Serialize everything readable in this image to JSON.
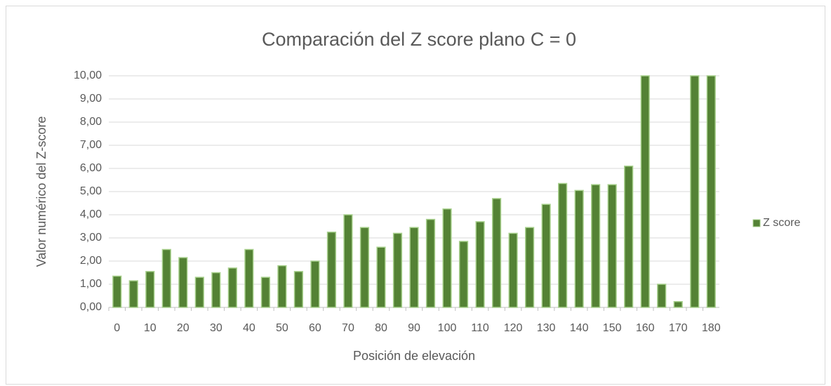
{
  "chart_data": {
    "type": "bar",
    "title": "Comparación del Z score plano C = 0",
    "xlabel": "Posición de elevación",
    "ylabel": "Valor numérico del  Z-score",
    "categories": [
      "0",
      null,
      "10",
      null,
      "20",
      null,
      "30",
      null,
      "40",
      null,
      "50",
      null,
      "60",
      null,
      "70",
      null,
      "80",
      null,
      "90",
      null,
      "100",
      null,
      "110",
      null,
      "120",
      null,
      "130",
      null,
      "140",
      null,
      "150",
      null,
      "160",
      null,
      "170",
      null,
      "180"
    ],
    "series": [
      {
        "name": "Z score",
        "color": "#548235",
        "values": [
          1.35,
          1.15,
          1.55,
          2.5,
          2.15,
          1.3,
          1.5,
          1.7,
          2.5,
          1.3,
          1.8,
          1.55,
          2.0,
          3.25,
          4.0,
          3.45,
          2.6,
          3.2,
          3.45,
          3.8,
          4.25,
          2.85,
          3.7,
          4.7,
          3.2,
          3.45,
          4.45,
          5.35,
          5.05,
          5.3,
          5.3,
          6.1,
          10,
          1.0,
          0.25,
          10,
          10
        ]
      }
    ],
    "ylim": [
      0,
      10
    ],
    "yticks": [
      {
        "value": 0,
        "label": "0,00"
      },
      {
        "value": 1,
        "label": "1,00"
      },
      {
        "value": 2,
        "label": "2,00"
      },
      {
        "value": 3,
        "label": "3,00"
      },
      {
        "value": 4,
        "label": "4,00"
      },
      {
        "value": 5,
        "label": "5,00"
      },
      {
        "value": 6,
        "label": "6,00"
      },
      {
        "value": 7,
        "label": "7,00"
      },
      {
        "value": 8,
        "label": "8,00"
      },
      {
        "value": 9,
        "label": "9,00"
      },
      {
        "value": 10,
        "label": "10,00"
      }
    ],
    "grid": true,
    "legend": "right"
  }
}
